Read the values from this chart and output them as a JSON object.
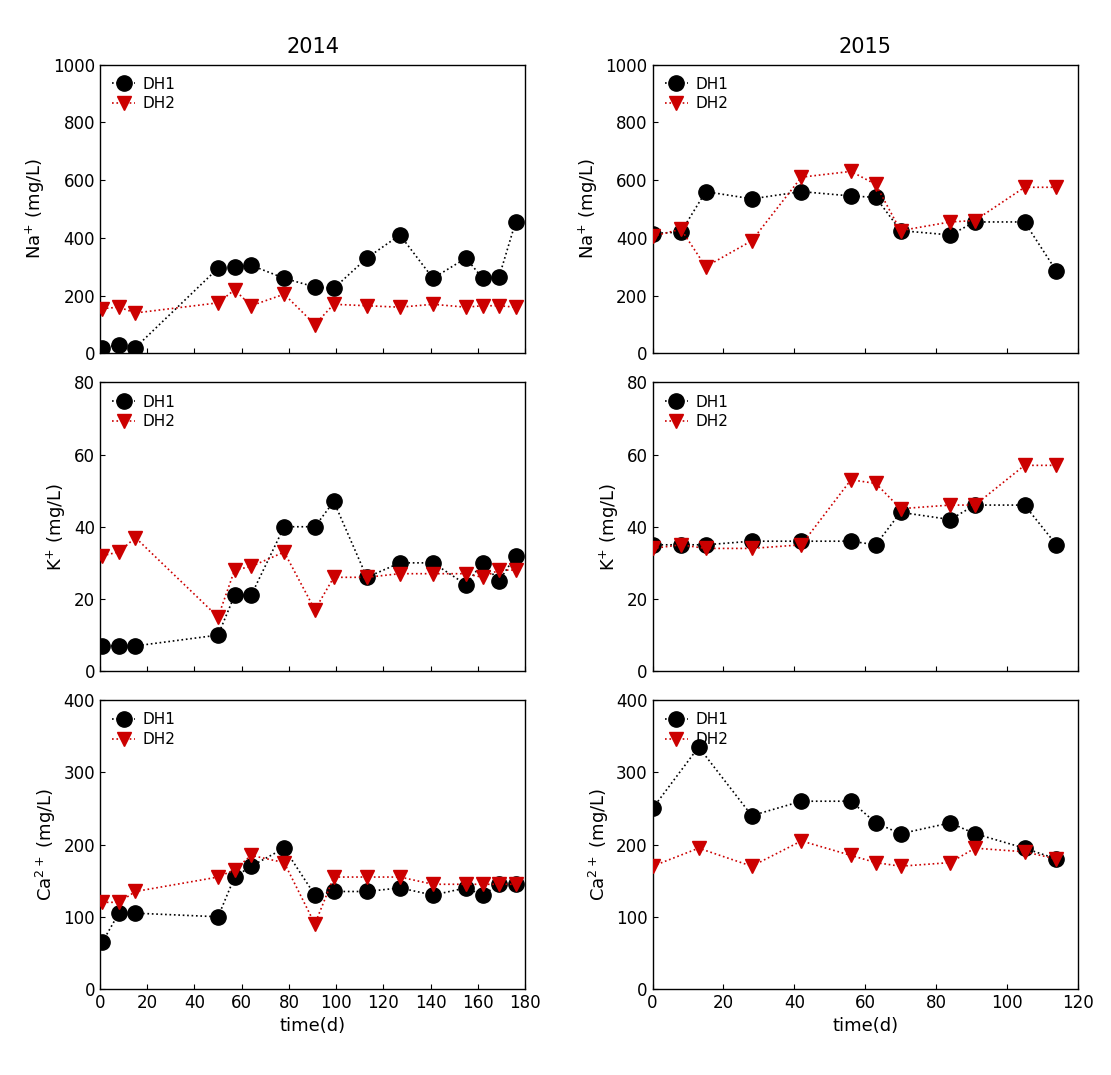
{
  "year2014": {
    "Na": {
      "DH1_x": [
        1,
        8,
        15,
        50,
        57,
        64,
        78,
        91,
        99,
        113,
        127,
        141,
        155,
        162,
        169,
        176
      ],
      "DH1_y": [
        20,
        30,
        20,
        295,
        300,
        305,
        260,
        230,
        225,
        330,
        410,
        260,
        330,
        260,
        265,
        455
      ],
      "DH2_x": [
        1,
        8,
        15,
        50,
        57,
        64,
        78,
        91,
        99,
        113,
        127,
        141,
        155,
        162,
        169,
        176
      ],
      "DH2_y": [
        155,
        160,
        140,
        175,
        220,
        165,
        205,
        100,
        170,
        165,
        160,
        170,
        160,
        165,
        165,
        160
      ]
    },
    "K": {
      "DH1_x": [
        1,
        8,
        15,
        50,
        57,
        64,
        78,
        91,
        99,
        113,
        127,
        141,
        155,
        162,
        169,
        176
      ],
      "DH1_y": [
        7,
        7,
        7,
        10,
        21,
        21,
        40,
        40,
        47,
        26,
        30,
        30,
        24,
        30,
        25,
        32
      ],
      "DH2_x": [
        1,
        8,
        15,
        50,
        57,
        64,
        78,
        91,
        99,
        113,
        127,
        141,
        155,
        162,
        169,
        176
      ],
      "DH2_y": [
        32,
        33,
        37,
        15,
        28,
        29,
        33,
        17,
        26,
        26,
        27,
        27,
        27,
        26,
        28,
        28
      ]
    },
    "Ca": {
      "DH1_x": [
        1,
        8,
        15,
        50,
        57,
        64,
        78,
        91,
        99,
        113,
        127,
        141,
        155,
        162,
        169,
        176
      ],
      "DH1_y": [
        65,
        105,
        105,
        100,
        155,
        170,
        195,
        130,
        135,
        135,
        140,
        130,
        140,
        130,
        145,
        145
      ],
      "DH2_x": [
        1,
        8,
        15,
        50,
        57,
        64,
        78,
        91,
        99,
        113,
        127,
        141,
        155,
        162,
        169,
        176
      ],
      "DH2_y": [
        120,
        120,
        135,
        155,
        165,
        185,
        175,
        90,
        155,
        155,
        155,
        145,
        145,
        145,
        145,
        145
      ]
    }
  },
  "year2015": {
    "Na": {
      "DH1_x": [
        0,
        8,
        15,
        28,
        42,
        56,
        63,
        70,
        84,
        91,
        105,
        114
      ],
      "DH1_y": [
        415,
        420,
        560,
        535,
        560,
        545,
        540,
        425,
        410,
        455,
        455,
        285
      ],
      "DH2_x": [
        0,
        8,
        15,
        28,
        42,
        56,
        63,
        70,
        84,
        91,
        105,
        114
      ],
      "DH2_y": [
        405,
        430,
        300,
        390,
        610,
        630,
        585,
        425,
        455,
        460,
        575,
        575
      ]
    },
    "K": {
      "DH1_x": [
        0,
        8,
        15,
        28,
        42,
        56,
        63,
        70,
        84,
        91,
        105,
        114
      ],
      "DH1_y": [
        35,
        35,
        35,
        36,
        36,
        36,
        35,
        44,
        42,
        46,
        46,
        35
      ],
      "DH2_x": [
        0,
        8,
        15,
        28,
        42,
        56,
        63,
        70,
        84,
        91,
        105,
        114
      ],
      "DH2_y": [
        34,
        35,
        34,
        34,
        35,
        53,
        52,
        45,
        46,
        46,
        57,
        57
      ]
    },
    "Ca": {
      "DH1_x": [
        0,
        13,
        28,
        42,
        56,
        63,
        70,
        84,
        91,
        105,
        114
      ],
      "DH1_y": [
        250,
        335,
        240,
        260,
        260,
        230,
        215,
        230,
        215,
        195,
        180
      ],
      "DH2_x": [
        0,
        13,
        28,
        42,
        56,
        63,
        70,
        84,
        91,
        105,
        114
      ],
      "DH2_y": [
        170,
        195,
        170,
        205,
        185,
        175,
        170,
        175,
        195,
        190,
        180
      ]
    }
  },
  "col2014_xlim": [
    0,
    180
  ],
  "col2015_xlim": [
    0,
    120
  ],
  "Na_ylim": [
    0,
    1000
  ],
  "K_ylim": [
    0,
    80
  ],
  "Ca_ylim": [
    0,
    400
  ],
  "Na_yticks": [
    0,
    200,
    400,
    600,
    800,
    1000
  ],
  "K_yticks": [
    0,
    20,
    40,
    60,
    80
  ],
  "Ca_yticks": [
    0,
    100,
    200,
    300,
    400
  ],
  "col2014_xticks": [
    0,
    20,
    40,
    60,
    80,
    100,
    120,
    140,
    160,
    180
  ],
  "col2015_xticks": [
    0,
    20,
    40,
    60,
    80,
    100,
    120
  ],
  "col1_title": "2014",
  "col2_title": "2015",
  "xlabel": "time(d)",
  "Na_ylabel": "Na$^{+}$ (mg/L)",
  "K_ylabel": "K$^{+}$ (mg/L)",
  "Ca_ylabel": "Ca$^{2+}$ (mg/L)",
  "DH1_color": "#000000",
  "DH2_color": "#cc0000",
  "title_fontsize": 15,
  "label_fontsize": 13,
  "tick_fontsize": 12,
  "legend_fontsize": 11,
  "marker_size_DH1": 11,
  "marker_size_DH2": 10
}
